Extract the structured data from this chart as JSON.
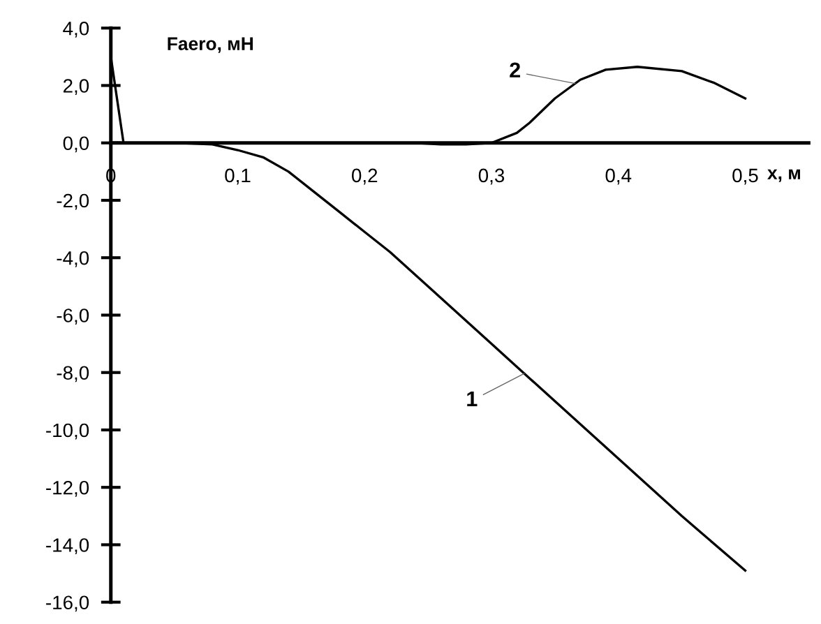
{
  "chart_data": {
    "type": "line",
    "xlabel": "x, м",
    "ylabel": "Faero, мН",
    "xlim": [
      0,
      0.55
    ],
    "ylim": [
      -16,
      4
    ],
    "xticks": [
      {
        "value": 0,
        "label": "0"
      },
      {
        "value": 0.1,
        "label": "0,1"
      },
      {
        "value": 0.2,
        "label": "0,2"
      },
      {
        "value": 0.3,
        "label": "0,3"
      },
      {
        "value": 0.4,
        "label": "0,4"
      },
      {
        "value": 0.5,
        "label": "0,5"
      }
    ],
    "yticks": [
      {
        "value": -16,
        "label": "-16,0"
      },
      {
        "value": -14,
        "label": "-14,0"
      },
      {
        "value": -12,
        "label": "-12,0"
      },
      {
        "value": -10,
        "label": "-10,0"
      },
      {
        "value": -8,
        "label": "-8,0"
      },
      {
        "value": -6,
        "label": "-6,0"
      },
      {
        "value": -4,
        "label": "-4,0"
      },
      {
        "value": -2,
        "label": "-2,0"
      },
      {
        "value": 0,
        "label": "0,0"
      },
      {
        "value": 2,
        "label": "2,0"
      },
      {
        "value": 4,
        "label": "4,0"
      }
    ],
    "series": [
      {
        "name": "1",
        "color": "#000000",
        "x": [
          0.05,
          0.08,
          0.1,
          0.12,
          0.14,
          0.16,
          0.18,
          0.2,
          0.22,
          0.25,
          0.3,
          0.35,
          0.4,
          0.45,
          0.5
        ],
        "values": [
          0,
          -0.05,
          -0.25,
          -0.5,
          -1.0,
          -1.7,
          -2.4,
          -3.1,
          -3.8,
          -5.0,
          -7.0,
          -9.0,
          -11.0,
          -13.0,
          -14.9
        ]
      },
      {
        "name": "2",
        "color": "#000000",
        "x": [
          0,
          0.01,
          0.24,
          0.26,
          0.28,
          0.3,
          0.32,
          0.33,
          0.35,
          0.37,
          0.39,
          0.415,
          0.45,
          0.475,
          0.5
        ],
        "values": [
          3.0,
          0,
          0,
          -0.05,
          -0.05,
          0,
          0.35,
          0.7,
          1.55,
          2.2,
          2.55,
          2.65,
          2.5,
          2.1,
          1.55
        ]
      }
    ]
  }
}
